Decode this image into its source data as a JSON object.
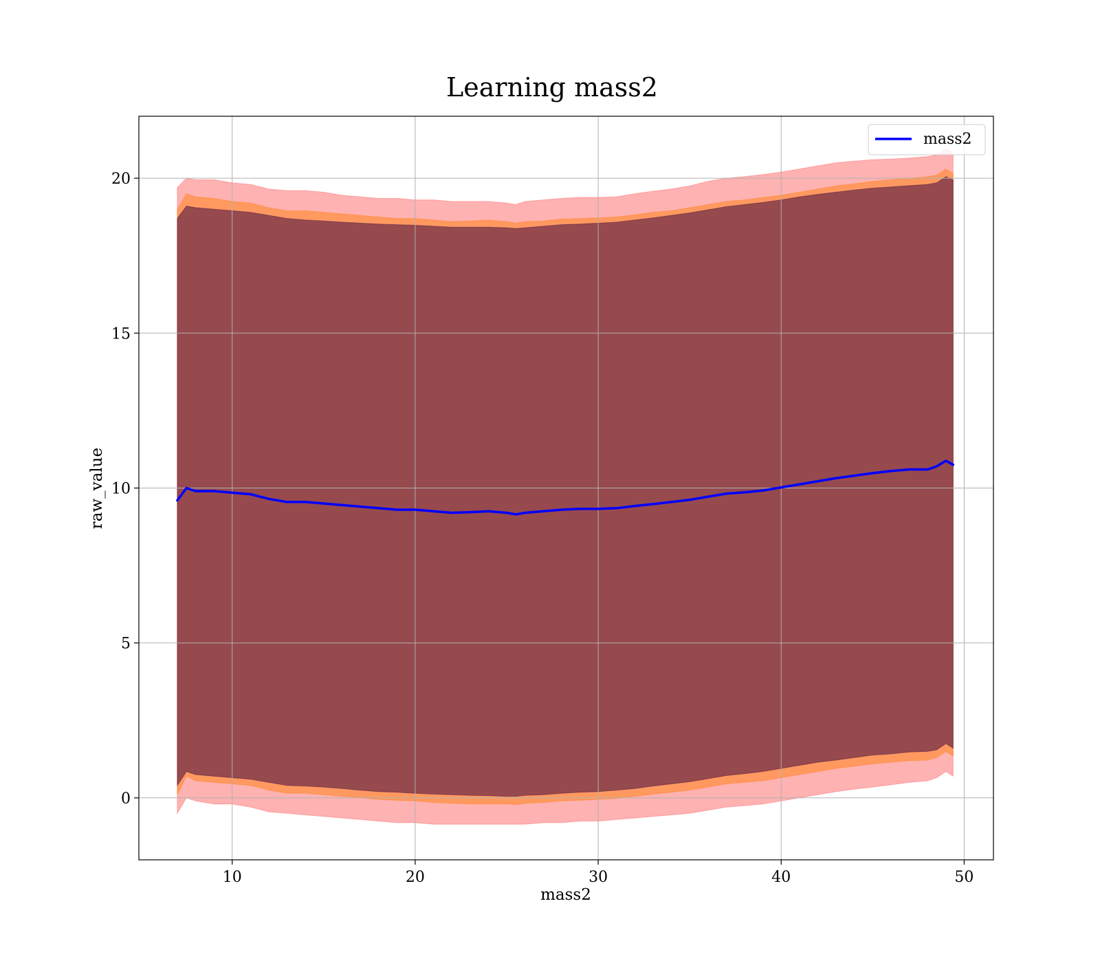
{
  "chart_data": {
    "type": "line",
    "title": "Learning mass2",
    "xlabel": "mass2",
    "ylabel": "raw_value",
    "xlim": [
      4.9,
      51.6
    ],
    "ylim": [
      -2.0,
      22.0
    ],
    "xticks": [
      10,
      20,
      30,
      40,
      50
    ],
    "yticks": [
      0,
      5,
      10,
      15,
      20
    ],
    "grid": true,
    "legend": {
      "placement": "top-right",
      "entries": [
        "mass2"
      ]
    },
    "colors": {
      "line": "#0000ff",
      "band_outer": "#ff0000",
      "band_middle": "#ff7f0e",
      "band_inner": "#3f0a3f"
    },
    "x": [
      7.0,
      7.5,
      8.0,
      9.0,
      10.0,
      11.0,
      12.0,
      13.0,
      14.0,
      15.0,
      16.0,
      17.0,
      18.0,
      19.0,
      20.0,
      21.0,
      22.0,
      23.0,
      24.0,
      25.0,
      25.5,
      26.0,
      27.0,
      28.0,
      29.0,
      30.0,
      31.0,
      32.0,
      33.0,
      34.0,
      35.0,
      36.0,
      37.0,
      38.0,
      39.0,
      40.0,
      41.0,
      42.0,
      43.0,
      44.0,
      45.0,
      46.0,
      47.0,
      48.0,
      48.5,
      49.0,
      49.4
    ],
    "series": [
      {
        "name": "mass2",
        "kind": "line",
        "values": [
          9.6,
          10.0,
          9.9,
          9.9,
          9.85,
          9.8,
          9.65,
          9.55,
          9.55,
          9.5,
          9.45,
          9.4,
          9.35,
          9.3,
          9.3,
          9.25,
          9.2,
          9.22,
          9.25,
          9.2,
          9.15,
          9.2,
          9.25,
          9.3,
          9.33,
          9.33,
          9.35,
          9.42,
          9.48,
          9.55,
          9.62,
          9.72,
          9.82,
          9.86,
          9.92,
          10.02,
          10.12,
          10.22,
          10.32,
          10.4,
          10.48,
          10.55,
          10.6,
          10.6,
          10.7,
          10.88,
          10.75
        ]
      },
      {
        "kind": "band",
        "level": "outer",
        "upper": [
          19.7,
          20.0,
          19.95,
          19.95,
          19.85,
          19.8,
          19.65,
          19.6,
          19.6,
          19.55,
          19.45,
          19.4,
          19.35,
          19.35,
          19.3,
          19.3,
          19.25,
          19.25,
          19.25,
          19.2,
          19.15,
          19.25,
          19.3,
          19.35,
          19.38,
          19.38,
          19.4,
          19.5,
          19.58,
          19.65,
          19.75,
          19.9,
          20.0,
          20.05,
          20.12,
          20.2,
          20.3,
          20.4,
          20.5,
          20.55,
          20.6,
          20.62,
          20.65,
          20.7,
          20.75,
          20.95,
          20.8
        ],
        "lower": [
          -0.5,
          0.0,
          -0.1,
          -0.2,
          -0.2,
          -0.3,
          -0.45,
          -0.5,
          -0.55,
          -0.6,
          -0.65,
          -0.7,
          -0.75,
          -0.8,
          -0.8,
          -0.85,
          -0.85,
          -0.85,
          -0.85,
          -0.85,
          -0.85,
          -0.85,
          -0.8,
          -0.8,
          -0.75,
          -0.75,
          -0.7,
          -0.65,
          -0.6,
          -0.55,
          -0.5,
          -0.4,
          -0.3,
          -0.25,
          -0.2,
          -0.1,
          0.0,
          0.1,
          0.2,
          0.28,
          0.35,
          0.42,
          0.5,
          0.55,
          0.65,
          0.85,
          0.7
        ]
      },
      {
        "kind": "band",
        "level": "middle",
        "upper": [
          19.0,
          19.5,
          19.4,
          19.35,
          19.25,
          19.2,
          19.05,
          18.95,
          18.95,
          18.9,
          18.85,
          18.8,
          18.75,
          18.7,
          18.7,
          18.65,
          18.6,
          18.62,
          18.65,
          18.6,
          18.55,
          18.6,
          18.62,
          18.68,
          18.7,
          18.72,
          18.75,
          18.82,
          18.9,
          18.95,
          19.05,
          19.15,
          19.25,
          19.3,
          19.38,
          19.45,
          19.55,
          19.65,
          19.75,
          19.82,
          19.9,
          19.95,
          20.0,
          20.05,
          20.1,
          20.3,
          20.15
        ],
        "lower": [
          0.1,
          0.7,
          0.55,
          0.5,
          0.45,
          0.4,
          0.25,
          0.15,
          0.15,
          0.1,
          0.05,
          0.0,
          -0.05,
          -0.08,
          -0.1,
          -0.15,
          -0.18,
          -0.2,
          -0.2,
          -0.2,
          -0.22,
          -0.18,
          -0.15,
          -0.1,
          -0.08,
          -0.05,
          -0.02,
          0.05,
          0.12,
          0.18,
          0.25,
          0.35,
          0.45,
          0.5,
          0.55,
          0.65,
          0.75,
          0.85,
          0.95,
          1.02,
          1.1,
          1.15,
          1.2,
          1.22,
          1.3,
          1.5,
          1.35
        ]
      },
      {
        "kind": "band",
        "level": "inner",
        "upper": [
          18.7,
          19.1,
          19.05,
          19.0,
          18.95,
          18.9,
          18.8,
          18.7,
          18.65,
          18.62,
          18.58,
          18.55,
          18.52,
          18.5,
          18.48,
          18.45,
          18.42,
          18.42,
          18.42,
          18.4,
          18.38,
          18.4,
          18.45,
          18.5,
          18.52,
          18.55,
          18.58,
          18.65,
          18.72,
          18.8,
          18.88,
          18.98,
          19.08,
          19.15,
          19.22,
          19.3,
          19.4,
          19.48,
          19.55,
          19.62,
          19.68,
          19.72,
          19.76,
          19.8,
          19.85,
          20.05,
          19.95
        ],
        "lower": [
          0.4,
          0.85,
          0.75,
          0.7,
          0.65,
          0.6,
          0.5,
          0.4,
          0.38,
          0.35,
          0.3,
          0.25,
          0.2,
          0.18,
          0.15,
          0.12,
          0.1,
          0.08,
          0.07,
          0.05,
          0.05,
          0.08,
          0.1,
          0.15,
          0.18,
          0.2,
          0.25,
          0.3,
          0.38,
          0.45,
          0.52,
          0.62,
          0.72,
          0.78,
          0.85,
          0.95,
          1.05,
          1.15,
          1.22,
          1.3,
          1.38,
          1.42,
          1.48,
          1.5,
          1.55,
          1.75,
          1.6
        ]
      }
    ]
  }
}
